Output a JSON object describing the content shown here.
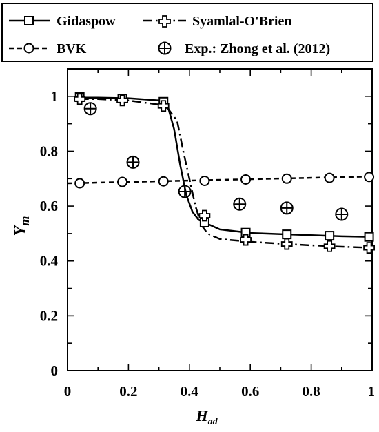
{
  "chart_data": {
    "type": "line",
    "xlabel": "H",
    "xlabel_sub": "ad",
    "ylabel": "Y",
    "ylabel_sub": "m",
    "xlim": [
      0,
      1
    ],
    "ylim": [
      0,
      1.1
    ],
    "x_ticks": [
      "0",
      "0.2",
      "0.4",
      "0.6",
      "0.8",
      "1"
    ],
    "y_ticks": [
      "0",
      "0.2",
      "0.4",
      "0.6",
      "0.8",
      "1"
    ],
    "grid": false,
    "legend_position": "top",
    "series": [
      {
        "name": "Gidaspow",
        "style": "solid",
        "marker": "square",
        "line": {
          "x": [
            0.04,
            0.1,
            0.2,
            0.3,
            0.33,
            0.35,
            0.37,
            0.39,
            0.41,
            0.43,
            0.45,
            0.5,
            0.6,
            0.7,
            0.8,
            0.9,
            1.0
          ],
          "y": [
            0.995,
            0.995,
            0.993,
            0.985,
            0.96,
            0.88,
            0.75,
            0.64,
            0.58,
            0.55,
            0.54,
            0.515,
            0.502,
            0.498,
            0.494,
            0.49,
            0.488
          ]
        },
        "points": {
          "x": [
            0.04,
            0.18,
            0.315,
            0.45,
            0.585,
            0.72,
            0.86,
            0.99
          ],
          "y": [
            0.997,
            0.992,
            0.98,
            0.54,
            0.503,
            0.497,
            0.492,
            0.488
          ]
        }
      },
      {
        "name": "Syamlal-O'Brien",
        "style": "dashdot",
        "marker": "plus",
        "line": {
          "x": [
            0.04,
            0.1,
            0.2,
            0.3,
            0.33,
            0.36,
            0.38,
            0.4,
            0.42,
            0.44,
            0.46,
            0.5,
            0.6,
            0.7,
            0.8,
            0.9,
            1.0
          ],
          "y": [
            0.99,
            0.99,
            0.985,
            0.97,
            0.955,
            0.91,
            0.8,
            0.7,
            0.6,
            0.53,
            0.5,
            0.48,
            0.47,
            0.463,
            0.457,
            0.452,
            0.448
          ]
        },
        "points": {
          "x": [
            0.04,
            0.18,
            0.315,
            0.45,
            0.585,
            0.72,
            0.86,
            0.99
          ],
          "y": [
            0.99,
            0.985,
            0.965,
            0.565,
            0.477,
            0.462,
            0.454,
            0.448
          ]
        }
      },
      {
        "name": "BVK",
        "style": "dashed",
        "marker": "circle",
        "line": {
          "x": [
            0.0,
            1.0
          ],
          "y": [
            0.683,
            0.708
          ]
        },
        "points": {
          "x": [
            0.04,
            0.18,
            0.315,
            0.45,
            0.585,
            0.72,
            0.86,
            0.99
          ],
          "y": [
            0.683,
            0.688,
            0.69,
            0.692,
            0.697,
            0.7,
            0.703,
            0.706
          ]
        }
      },
      {
        "name": "Exp.: Zhong et al. (2012)",
        "style": "none",
        "marker": "circle-plus",
        "points": {
          "x": [
            0.075,
            0.215,
            0.385,
            0.565,
            0.72,
            0.9
          ],
          "y": [
            0.955,
            0.76,
            0.653,
            0.607,
            0.593,
            0.57
          ]
        }
      }
    ]
  }
}
